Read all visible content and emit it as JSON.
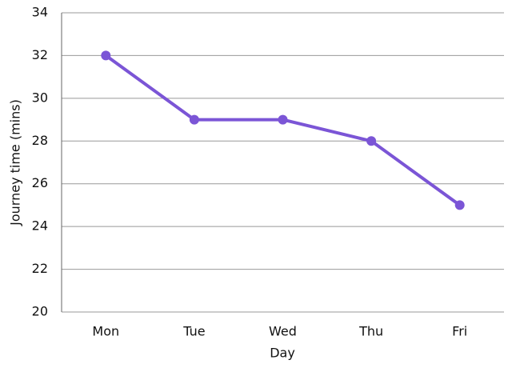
{
  "chart_data": {
    "type": "line",
    "x_label": "Day",
    "y_label": "Journey time (mins)",
    "categories": [
      "Mon",
      "Tue",
      "Wed",
      "Thu",
      "Fri"
    ],
    "series": [
      {
        "name": "Journey time",
        "color": "#7b55d6",
        "values": [
          32,
          29,
          29,
          28,
          25
        ]
      }
    ],
    "ylim": [
      20,
      34
    ],
    "yticks": [
      20,
      22,
      24,
      26,
      28,
      30,
      32,
      34
    ],
    "grid": true
  }
}
